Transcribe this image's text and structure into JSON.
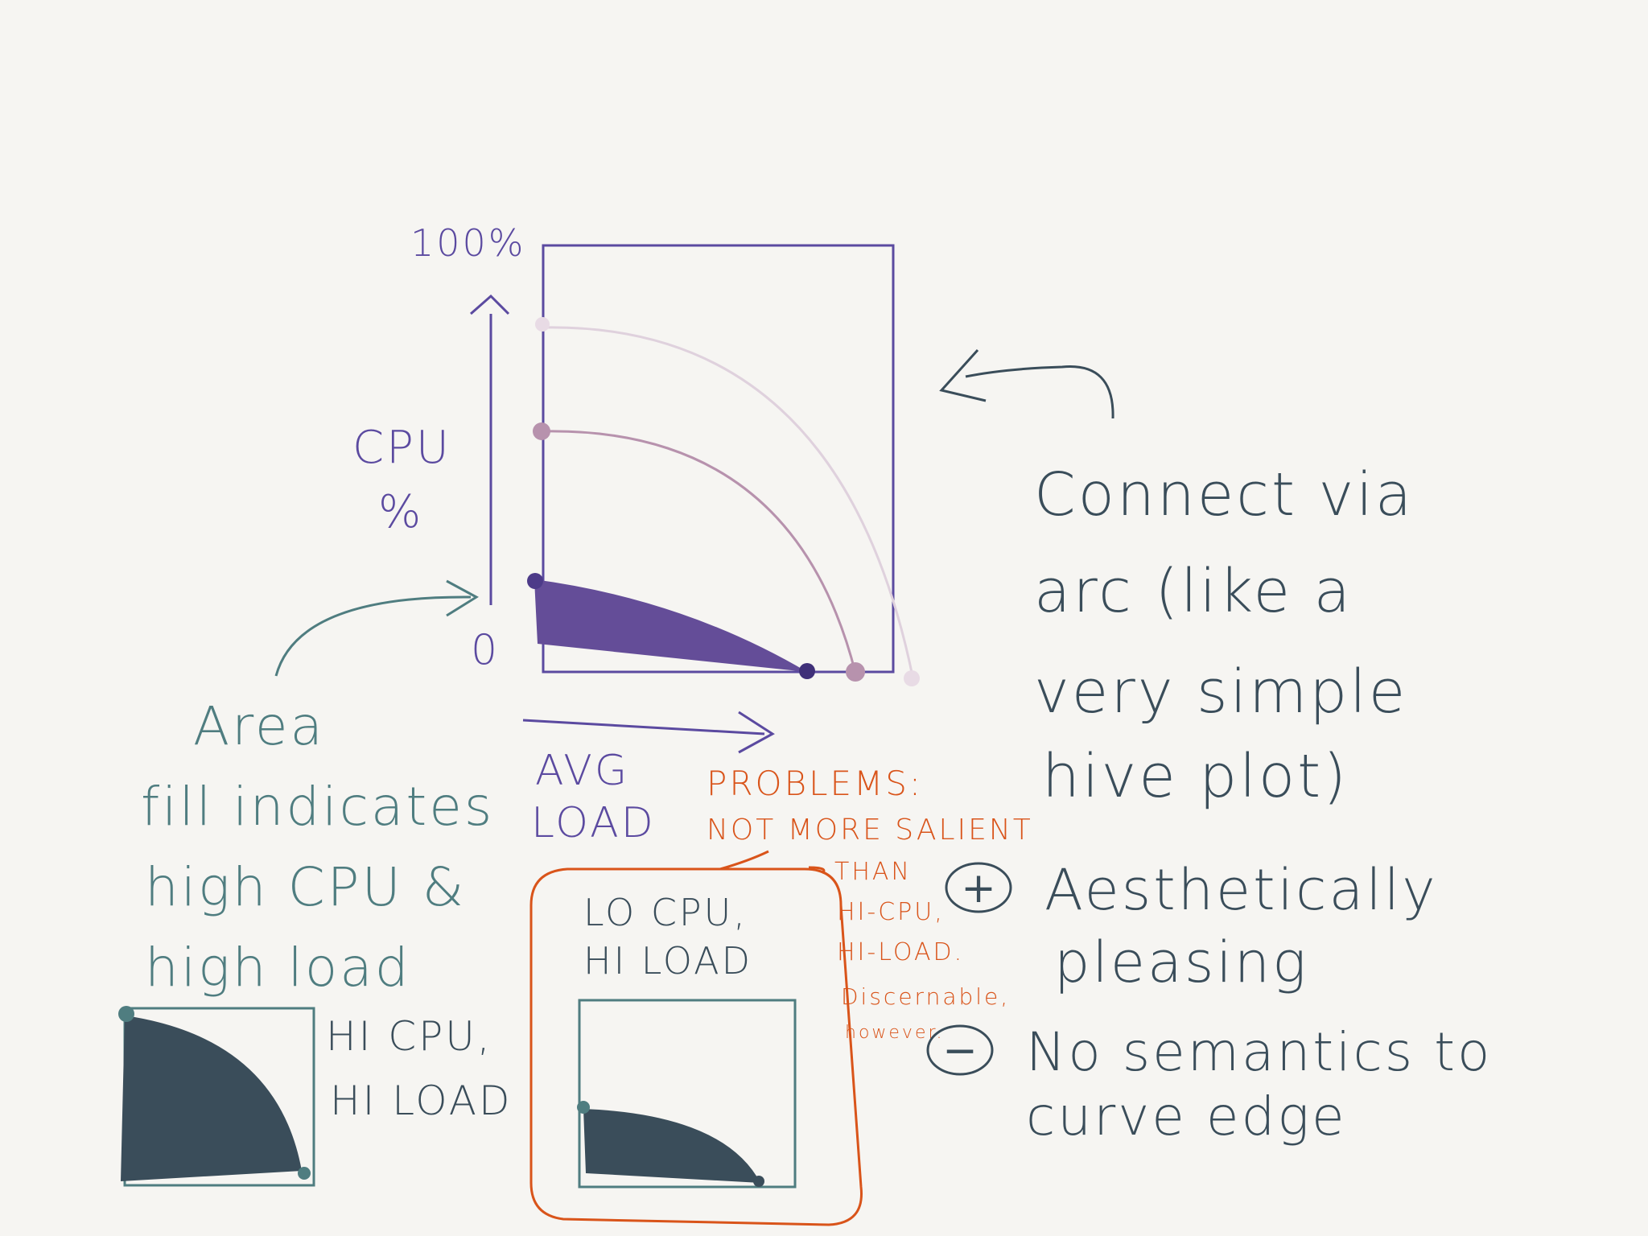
{
  "main_chart": {
    "y_max_label": "100%",
    "y_label_line1": "CPU",
    "y_label_line2": "%",
    "origin_label": "0",
    "x_label_line1": "AVG",
    "x_label_line2": "LOAD"
  },
  "notes": {
    "connect": [
      "Connect via",
      "arc (like a",
      "very simple",
      "hive plot)"
    ],
    "area": [
      "Area",
      "fill indicates",
      "high CPU &",
      "high load"
    ],
    "pro_symbol": "+",
    "pro": [
      "Aesthetically",
      "pleasing"
    ],
    "con_symbol": "−",
    "con": [
      "No semantics to",
      "curve edge"
    ]
  },
  "problems": [
    "PROBLEMS:",
    "NOT MORE SALIENT",
    "THAN",
    "HI-CPU,",
    "HI-LOAD.",
    "Discernable,",
    "however."
  ],
  "thumb_hi": {
    "label_line1": "HI CPU,",
    "label_line2": "HI LOAD"
  },
  "thumb_lo": {
    "label_line1": "LO CPU,",
    "label_line2": "HI LOAD"
  },
  "colors": {
    "purple": "#5b4aa0",
    "fill_purple": "#644d98",
    "teal": "#4f7d80",
    "slate": "#3a4d5a",
    "orange": "#d9541a",
    "mauve": "#b792ad",
    "pale": "#dfd1dd"
  }
}
